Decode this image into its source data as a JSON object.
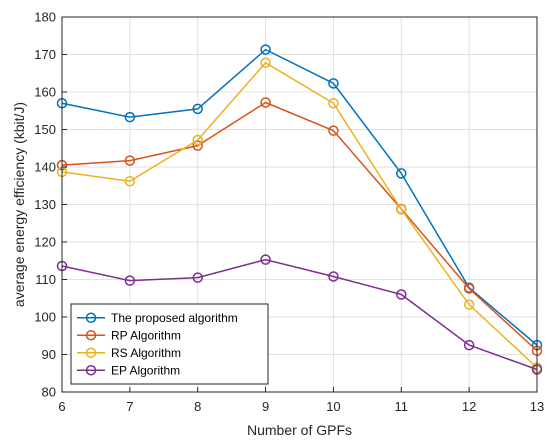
{
  "chart_data": {
    "type": "line",
    "title": "",
    "xlabel": "Number of GPFs",
    "ylabel": "average energy efficiency (kbit/J)",
    "x": [
      6,
      7,
      8,
      9,
      10,
      11,
      12,
      13
    ],
    "xlim": [
      6,
      13
    ],
    "ylim": [
      80,
      180
    ],
    "xticks": [
      6,
      7,
      8,
      9,
      10,
      11,
      12,
      13
    ],
    "yticks": [
      80,
      90,
      100,
      110,
      120,
      130,
      140,
      150,
      160,
      170,
      180
    ],
    "grid": true,
    "legend_position": "bottom-left",
    "marker": "open-circle",
    "series": [
      {
        "name": "The proposed algorithm",
        "color": "#0072BD",
        "values": [
          157,
          153.3,
          155.5,
          171.3,
          162.3,
          138.3,
          107.8,
          92.5
        ]
      },
      {
        "name": "RP Algorithm",
        "color": "#D95319",
        "values": [
          140.5,
          141.7,
          145.7,
          157.2,
          149.7,
          128.8,
          107.6,
          91
        ]
      },
      {
        "name": "RS Algorithm",
        "color": "#EDB120",
        "values": [
          138.7,
          136.2,
          147.2,
          167.8,
          157,
          128.7,
          103.3,
          86.5
        ]
      },
      {
        "name": "EP Algorithm",
        "color": "#7E2F8E",
        "values": [
          113.6,
          109.7,
          110.5,
          115.3,
          110.8,
          106,
          92.5,
          86
        ]
      }
    ]
  }
}
